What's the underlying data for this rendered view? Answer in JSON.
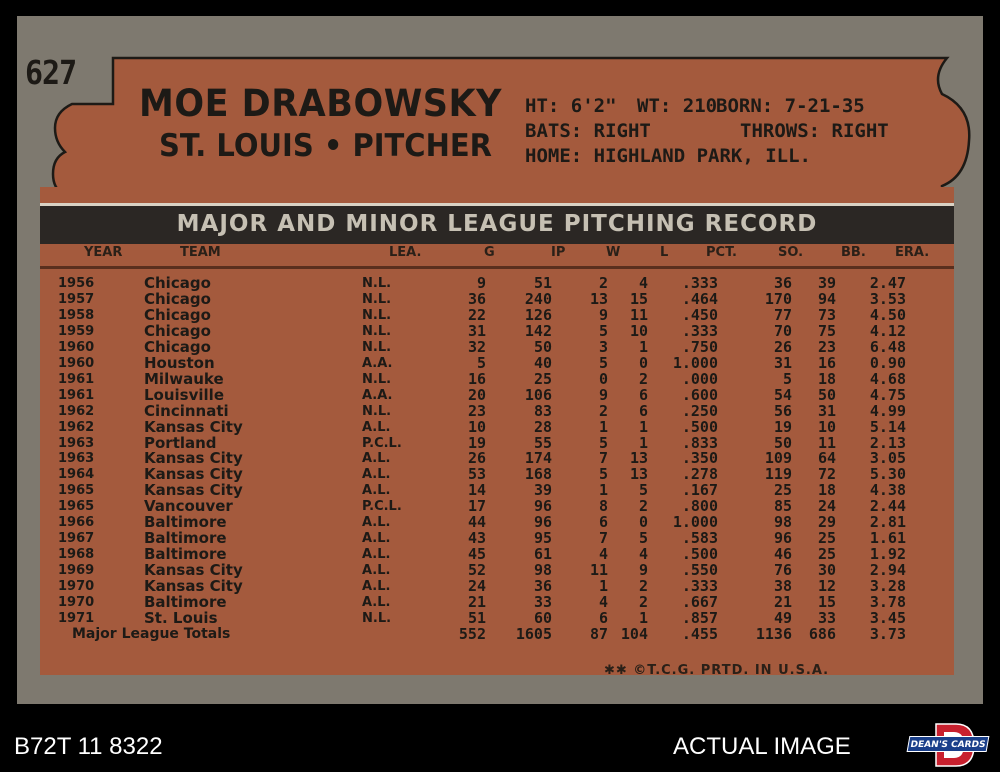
{
  "card": {
    "number": "627",
    "name": "MOE DRABOWSKY",
    "team": "ST. LOUIS",
    "separator": "•",
    "position": "PITCHER",
    "bio": {
      "ht": "HT: 6'2\"",
      "wt": "WT: 210",
      "born": "BORN: 7-21-35",
      "bats": "BATS: RIGHT",
      "throws": "THROWS: RIGHT",
      "home": "HOME: HIGHLAND PARK, ILL."
    },
    "record_title": "MAJOR AND MINOR LEAGUE PITCHING RECORD",
    "columns": [
      "YEAR",
      "TEAM",
      "LEA.",
      "G",
      "IP",
      "W",
      "L",
      "PCT.",
      "SO.",
      "BB.",
      "ERA."
    ],
    "rows": [
      [
        "1956",
        "Chicago",
        "N.L.",
        "9",
        "51",
        "2",
        "4",
        ".333",
        "36",
        "39",
        "2.47"
      ],
      [
        "1957",
        "Chicago",
        "N.L.",
        "36",
        "240",
        "13",
        "15",
        ".464",
        "170",
        "94",
        "3.53"
      ],
      [
        "1958",
        "Chicago",
        "N.L.",
        "22",
        "126",
        "9",
        "11",
        ".450",
        "77",
        "73",
        "4.50"
      ],
      [
        "1959",
        "Chicago",
        "N.L.",
        "31",
        "142",
        "5",
        "10",
        ".333",
        "70",
        "75",
        "4.12"
      ],
      [
        "1960",
        "Chicago",
        "N.L.",
        "32",
        "50",
        "3",
        "1",
        ".750",
        "26",
        "23",
        "6.48"
      ],
      [
        "1960",
        "Houston",
        "A.A.",
        "5",
        "40",
        "5",
        "0",
        "1.000",
        "31",
        "16",
        "0.90"
      ],
      [
        "1961",
        "Milwauke",
        "N.L.",
        "16",
        "25",
        "0",
        "2",
        ".000",
        "5",
        "18",
        "4.68"
      ],
      [
        "1961",
        "Louisville",
        "A.A.",
        "20",
        "106",
        "9",
        "6",
        ".600",
        "54",
        "50",
        "4.75"
      ],
      [
        "1962",
        "Cincinnati",
        "N.L.",
        "23",
        "83",
        "2",
        "6",
        ".250",
        "56",
        "31",
        "4.99"
      ],
      [
        "1962",
        "Kansas City",
        "A.L.",
        "10",
        "28",
        "1",
        "1",
        ".500",
        "19",
        "10",
        "5.14"
      ],
      [
        "1963",
        "Portland",
        "P.C.L.",
        "19",
        "55",
        "5",
        "1",
        ".833",
        "50",
        "11",
        "2.13"
      ],
      [
        "1963",
        "Kansas City",
        "A.L.",
        "26",
        "174",
        "7",
        "13",
        ".350",
        "109",
        "64",
        "3.05"
      ],
      [
        "1964",
        "Kansas City",
        "A.L.",
        "53",
        "168",
        "5",
        "13",
        ".278",
        "119",
        "72",
        "5.30"
      ],
      [
        "1965",
        "Kansas City",
        "A.L.",
        "14",
        "39",
        "1",
        "5",
        ".167",
        "25",
        "18",
        "4.38"
      ],
      [
        "1965",
        "Vancouver",
        "P.C.L.",
        "17",
        "96",
        "8",
        "2",
        ".800",
        "85",
        "24",
        "2.44"
      ],
      [
        "1966",
        "Baltimore",
        "A.L.",
        "44",
        "96",
        "6",
        "0",
        "1.000",
        "98",
        "29",
        "2.81"
      ],
      [
        "1967",
        "Baltimore",
        "A.L.",
        "43",
        "95",
        "7",
        "5",
        ".583",
        "96",
        "25",
        "1.61"
      ],
      [
        "1968",
        "Baltimore",
        "A.L.",
        "45",
        "61",
        "4",
        "4",
        ".500",
        "46",
        "25",
        "1.92"
      ],
      [
        "1969",
        "Kansas City",
        "A.L.",
        "52",
        "98",
        "11",
        "9",
        ".550",
        "76",
        "30",
        "2.94"
      ],
      [
        "1970",
        "Kansas City",
        "A.L.",
        "24",
        "36",
        "1",
        "2",
        ".333",
        "38",
        "12",
        "3.28"
      ],
      [
        "1970",
        "Baltimore",
        "A.L.",
        "21",
        "33",
        "4",
        "2",
        ".667",
        "21",
        "15",
        "3.78"
      ],
      [
        "1971",
        "St. Louis",
        "N.L.",
        "51",
        "60",
        "6",
        "1",
        ".857",
        "49",
        "33",
        "3.45"
      ]
    ],
    "totals": {
      "label": "Major League Totals",
      "values": [
        "552",
        "1605",
        "87",
        "104",
        ".455",
        "1136",
        "686",
        "3.73"
      ]
    },
    "copyright": "✱✱ ©T.C.G. PRTD. IN U.S.A."
  },
  "footer": {
    "cert": "B72T 11 8322",
    "label": "ACTUAL IMAGE",
    "logo_text": "DEAN'S CARDS"
  },
  "colors": {
    "card_gray": "#7e796f",
    "panel_brown": "#a45a3d",
    "title_bar": "#2b2724",
    "ink": "#1d1a16"
  }
}
